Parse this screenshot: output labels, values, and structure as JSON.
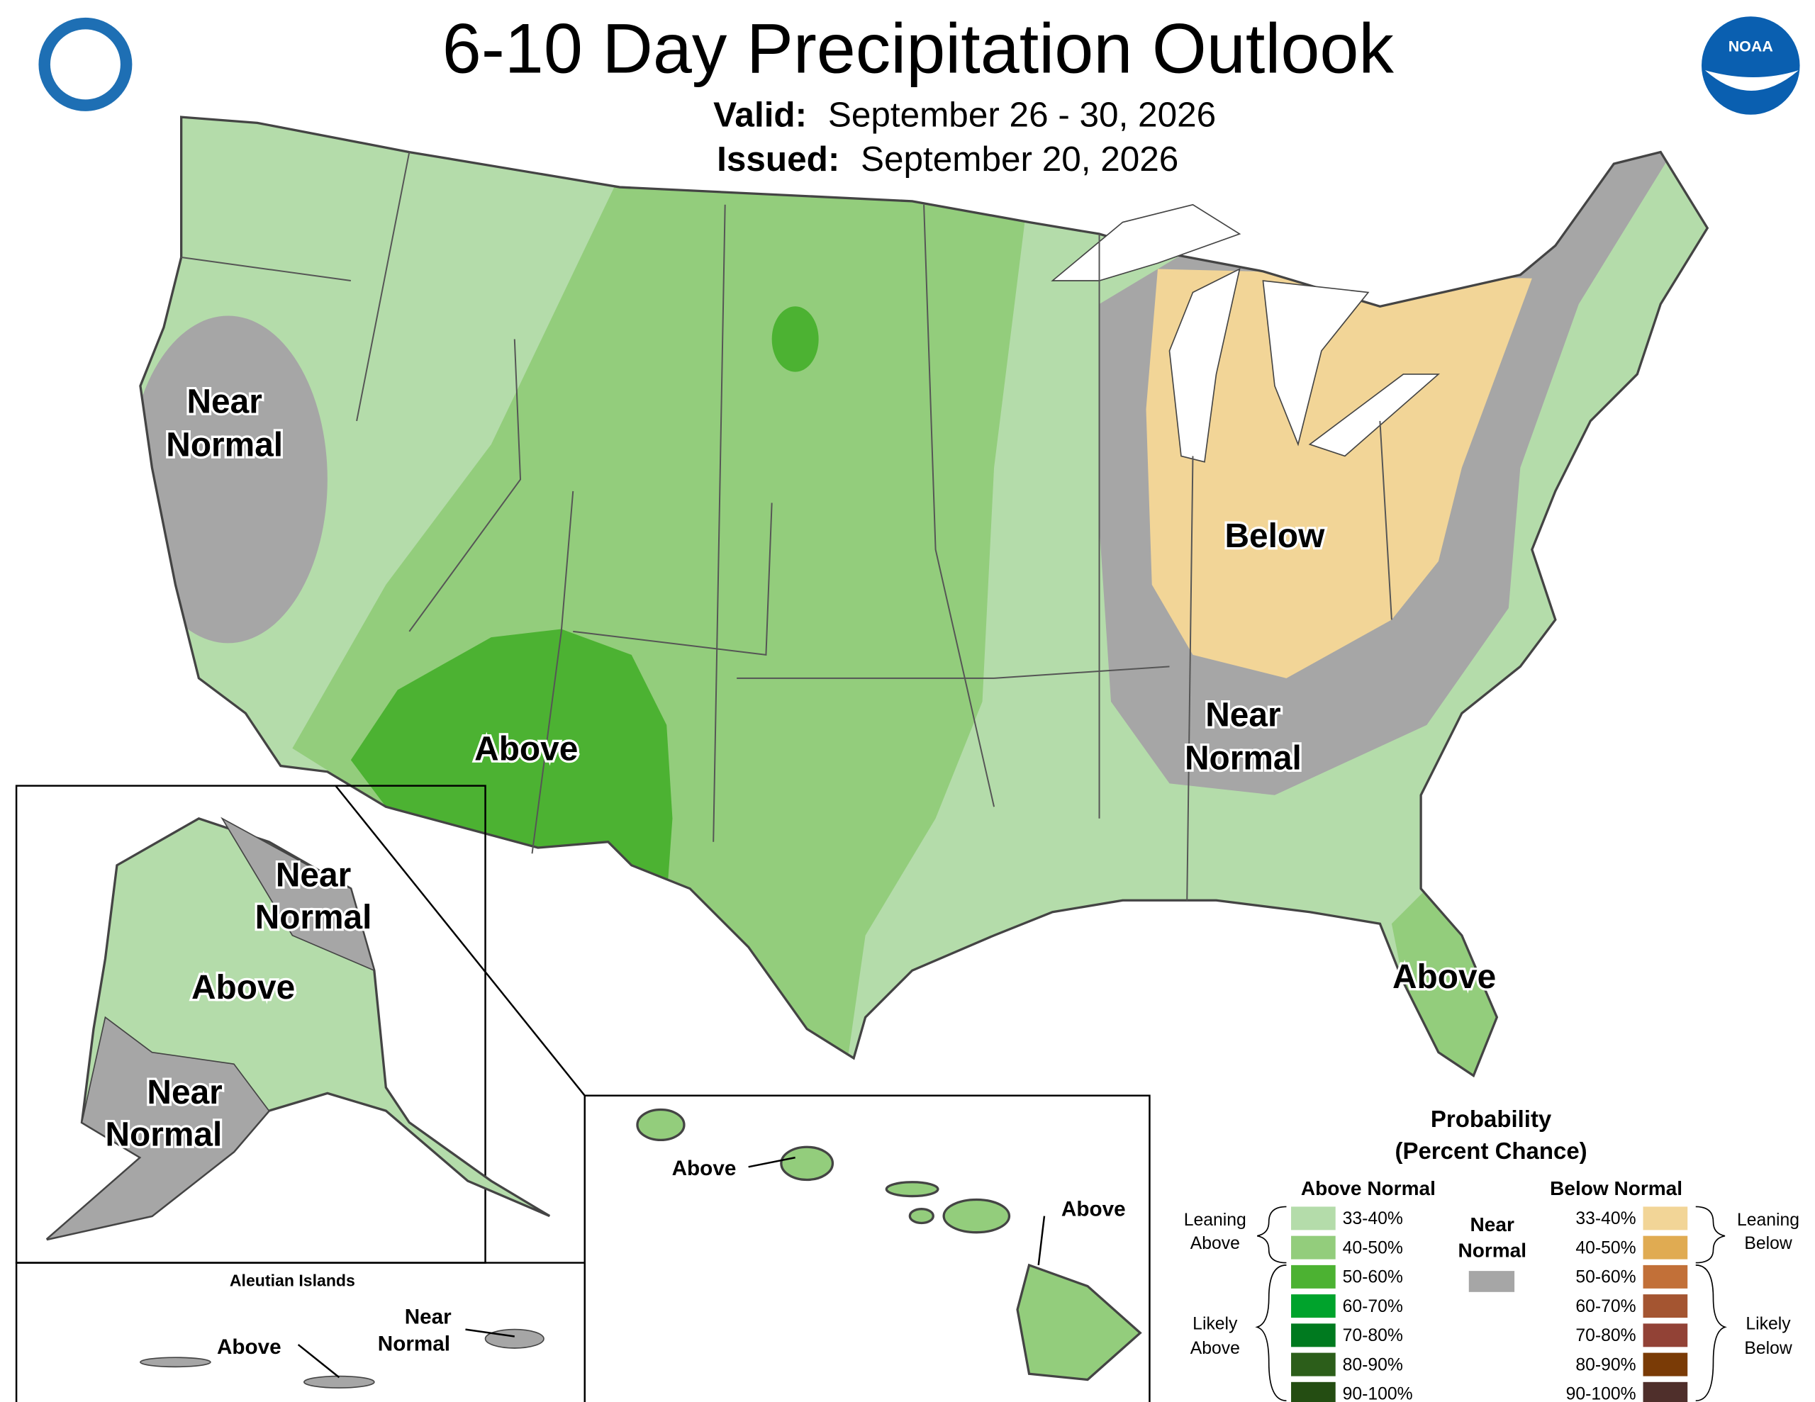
{
  "header": {
    "title": "6-10 Day Precipitation Outlook",
    "valid_label": "Valid:",
    "valid": "September 26 - 30, 2026",
    "issued_label": "Issued:",
    "issued": "September 20, 2026",
    "logo": "NOAA"
  },
  "conus_labels": [
    {
      "lines": [
        "Near",
        "Normal"
      ]
    },
    {
      "lines": [
        "Above"
      ]
    },
    {
      "lines": [
        "Below"
      ]
    },
    {
      "lines": [
        "Near",
        "Normal"
      ]
    },
    {
      "lines": [
        "Above"
      ]
    }
  ],
  "alaska": {
    "labels": [
      {
        "lines": [
          "Near",
          "Normal"
        ]
      },
      {
        "lines": [
          "Above"
        ]
      },
      {
        "lines": [
          "Near",
          "Normal"
        ]
      }
    ]
  },
  "aleutians": {
    "title": "Aleutian Islands",
    "labels": [
      {
        "lines": [
          "Above"
        ]
      },
      {
        "lines": [
          "Near",
          "Normal"
        ]
      }
    ]
  },
  "hawaii": {
    "labels": [
      {
        "lines": [
          "Above"
        ]
      },
      {
        "lines": [
          "Above"
        ]
      }
    ]
  },
  "legend": {
    "title": [
      "Probability",
      "(Percent Chance)"
    ],
    "above_header": "Above Normal",
    "below_header": "Below Normal",
    "near": {
      "lines": [
        "Near",
        "Normal"
      ],
      "color": "#a6a6a6"
    },
    "above": [
      {
        "range": "33-40%",
        "color": "#b4dcaa"
      },
      {
        "range": "40-50%",
        "color": "#93cd7c"
      },
      {
        "range": "50-60%",
        "color": "#4cb232"
      },
      {
        "range": "60-70%",
        "color": "#00a32c"
      },
      {
        "range": "70-80%",
        "color": "#007a1f"
      },
      {
        "range": "80-90%",
        "color": "#2c5e1a"
      },
      {
        "range": "90-100%",
        "color": "#244d12"
      }
    ],
    "below": [
      {
        "range": "33-40%",
        "color": "#f2d597"
      },
      {
        "range": "40-50%",
        "color": "#e0ab52"
      },
      {
        "range": "50-60%",
        "color": "#c27038"
      },
      {
        "range": "60-70%",
        "color": "#a45531"
      },
      {
        "range": "70-80%",
        "color": "#924236"
      },
      {
        "range": "80-90%",
        "color": "#7a3b06"
      },
      {
        "range": "90-100%",
        "color": "#4f2f2b"
      }
    ],
    "groups": {
      "leaning_above": [
        "Leaning",
        "Above"
      ],
      "likely_above": [
        "Likely",
        "Above"
      ],
      "leaning_below": [
        "Leaning",
        "Below"
      ],
      "likely_below": [
        "Likely",
        "Below"
      ]
    }
  }
}
